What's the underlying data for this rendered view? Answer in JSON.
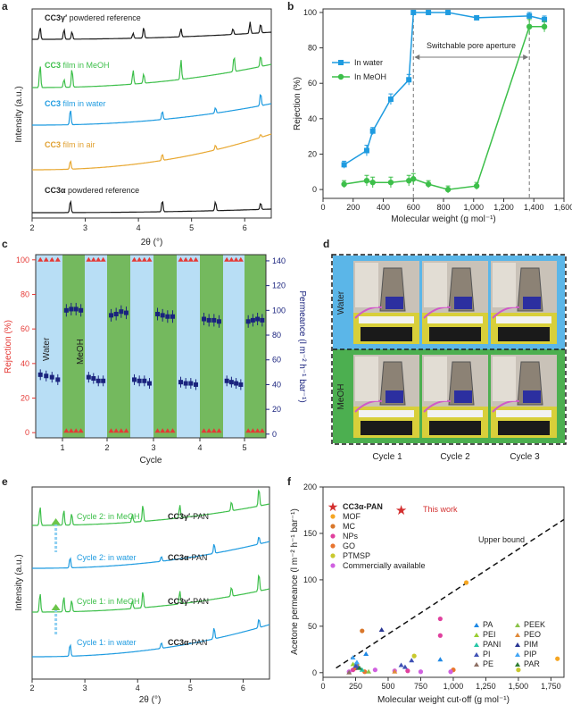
{
  "panels": {
    "a": {
      "label": "a",
      "xlabel": "2θ (°)",
      "ylabel": "Intensity (a.u.)",
      "xticks": [
        "2",
        "3",
        "4",
        "5",
        "6"
      ],
      "traces": [
        {
          "name": "CC3γ′ powdered reference",
          "bold": "CC3γ′",
          "rest": " powdered reference",
          "color": "#1a1a1a"
        },
        {
          "name": "CC3 film in MeOH",
          "bold": "CC3",
          "rest": " film in MeOH",
          "color": "#3dbf4a"
        },
        {
          "name": "CC3 film in water",
          "bold": "CC3",
          "rest": " film in water",
          "color": "#1e9be0"
        },
        {
          "name": "CC3 film in air",
          "bold": "CC3",
          "rest": " film in air",
          "color": "#e8a832"
        },
        {
          "name": "CC3α powdered reference",
          "bold": "CC3α",
          "rest": " powdered reference",
          "color": "#1a1a1a"
        }
      ]
    },
    "b": {
      "label": "b",
      "xlabel": "Molecular weight (g mol⁻¹)",
      "ylabel": "Rejection (%)",
      "xticks": [
        "0",
        "200",
        "400",
        "600",
        "800",
        "1,000",
        "1,200",
        "1,400",
        "1,600"
      ],
      "yticks": [
        "0",
        "20",
        "40",
        "60",
        "80",
        "100"
      ],
      "annotation": "Switchable pore aperture",
      "legend": [
        "In water",
        "In MeOH"
      ]
    },
    "c": {
      "label": "c",
      "xlabel": "Cycle",
      "ylabel_left": "Rejection (%)",
      "ylabel_right": "Permeance (l m⁻² h⁻¹ bar⁻¹)",
      "yticks_left": [
        "0",
        "20",
        "40",
        "60",
        "80",
        "100"
      ],
      "yticks_right": [
        "0",
        "20",
        "40",
        "60",
        "80",
        "100",
        "120",
        "140"
      ],
      "xticks": [
        "1",
        "2",
        "3",
        "4",
        "5"
      ],
      "band_water": "Water",
      "band_meoh": "MeOH"
    },
    "d": {
      "label": "d",
      "row_labels": [
        "Water",
        "MeOH"
      ],
      "col_labels": [
        "Cycle 1",
        "Cycle 2",
        "Cycle 3"
      ]
    },
    "e": {
      "label": "e",
      "xlabel": "2θ (°)",
      "ylabel": "Intensity (a.u.)",
      "xticks": [
        "2",
        "3",
        "4",
        "5",
        "6"
      ],
      "traces": [
        {
          "name": "Cycle 2: in MeOH",
          "phase_bold": "CC3γ′",
          "phase_rest": "-PAN",
          "color": "#3dbf4a"
        },
        {
          "name": "Cycle 2: in water",
          "phase_bold": "CC3α",
          "phase_rest": "-PAN",
          "color": "#1e9be0"
        },
        {
          "name": "Cycle 1: in MeOH",
          "phase_bold": "CC3γ′",
          "phase_rest": "-PAN",
          "color": "#3dbf4a"
        },
        {
          "name": "Cycle 1: in water",
          "phase_bold": "CC3α",
          "phase_rest": "-PAN",
          "color": "#1e9be0"
        }
      ]
    },
    "f": {
      "label": "f",
      "xlabel": "Molecular weight cut-off (g mol⁻¹)",
      "ylabel": "Acetone permeance (l m⁻² h⁻¹ bar⁻¹)",
      "xticks": [
        "0",
        "250",
        "500",
        "750",
        "1,000",
        "1,250",
        "1,500",
        "1,750"
      ],
      "yticks": [
        "0",
        "50",
        "100",
        "150",
        "200"
      ],
      "this_work": "This work",
      "upper_bound": "Upper bound",
      "legend_main": [
        {
          "label": "CC3α-PAN",
          "color": "#d32f2f"
        },
        {
          "label": "MOF",
          "color": "#f5a623"
        },
        {
          "label": "MC",
          "color": "#d9772b"
        },
        {
          "label": "NPs",
          "color": "#e0409e"
        },
        {
          "label": "GO",
          "color": "#e8742f"
        },
        {
          "label": "PTMSP",
          "color": "#c9c92e"
        },
        {
          "label": "Commercially available",
          "color": "#d060e0"
        }
      ],
      "legend_polymer": [
        {
          "label": "PA",
          "color": "#1e88e5"
        },
        {
          "label": "PEI",
          "color": "#9acd32"
        },
        {
          "label": "PANI",
          "color": "#26c6a6"
        },
        {
          "label": "PI",
          "color": "#3f51b5"
        },
        {
          "label": "PE",
          "color": "#8d6e63"
        },
        {
          "label": "PEEK",
          "color": "#8bc34a"
        },
        {
          "label": "PEO",
          "color": "#e08a3a"
        },
        {
          "label": "PIM",
          "color": "#283593"
        },
        {
          "label": "PIP",
          "color": "#42a5f5"
        },
        {
          "label": "PAR",
          "color": "#2e7d32"
        }
      ]
    }
  },
  "chart_data": [
    {
      "type": "line",
      "panel": "a",
      "title": "",
      "xlabel": "2θ (°)",
      "ylabel": "Intensity (a.u.)",
      "xlim": [
        2,
        6.5
      ],
      "series": [
        {
          "name": "CC3γ′ powdered reference",
          "peaks": [
            2.15,
            2.6,
            2.75,
            3.9,
            4.1,
            4.8,
            5.78,
            6.1,
            6.3
          ]
        },
        {
          "name": "CC3 film in MeOH",
          "peaks": [
            2.15,
            2.6,
            2.75,
            3.9,
            4.1,
            4.8,
            5.8,
            6.3
          ]
        },
        {
          "name": "CC3 film in water",
          "peaks": [
            2.72,
            4.45,
            5.45,
            6.3
          ]
        },
        {
          "name": "CC3 film in air",
          "peaks": [
            2.72,
            4.45,
            5.45,
            6.3
          ]
        },
        {
          "name": "CC3α powdered reference",
          "peaks": [
            2.72,
            4.45,
            5.45,
            6.3
          ]
        }
      ]
    },
    {
      "type": "line",
      "panel": "b",
      "xlabel": "Molecular weight (g mol⁻¹)",
      "ylabel": "Rejection (%)",
      "xlim": [
        0,
        1600
      ],
      "ylim": [
        0,
        100
      ],
      "series": [
        {
          "name": "In water",
          "x": [
            140,
            290,
            330,
            450,
            570,
            600,
            700,
            830,
            1020,
            1370,
            1470
          ],
          "y": [
            14,
            22,
            33,
            51,
            62,
            100,
            100,
            100,
            97,
            98,
            96
          ],
          "err": [
            2,
            3,
            2,
            3,
            3,
            1,
            1,
            1,
            1,
            2,
            2
          ]
        },
        {
          "name": "In MeOH",
          "x": [
            140,
            290,
            330,
            450,
            570,
            600,
            700,
            830,
            1020,
            1370,
            1470
          ],
          "y": [
            3,
            5,
            4,
            4,
            5,
            6,
            3,
            0,
            2,
            92,
            92
          ],
          "err": [
            2,
            3,
            3,
            3,
            3,
            3,
            2,
            2,
            2,
            4,
            3
          ]
        }
      ]
    },
    {
      "type": "scatter",
      "panel": "c",
      "xlabel": "Cycle",
      "ylabel_left": "Rejection (%)",
      "ylabel_right": "Permeance (l m⁻² h⁻¹ bar⁻¹)",
      "ylim_left": [
        0,
        100
      ],
      "ylim_right": [
        0,
        145
      ],
      "cycles": [
        "1",
        "2",
        "3",
        "4",
        "5"
      ],
      "series": [
        {
          "name": "Rejection water",
          "values": [
            100,
            100,
            100,
            100,
            100
          ]
        },
        {
          "name": "Rejection MeOH",
          "values": [
            1,
            1,
            1,
            1,
            1
          ]
        },
        {
          "name": "Permeance water",
          "values": [
            [
              48,
              47,
              46,
              44
            ],
            [
              46,
              45,
              43,
              43
            ],
            [
              44,
              43,
              43,
              41
            ],
            [
              42,
              41,
              41,
              40
            ],
            [
              43,
              42,
              41,
              40
            ]
          ]
        },
        {
          "name": "Permeance MeOH",
          "values": [
            [
              100,
              101,
              101,
              100
            ],
            [
              96,
              97,
              99,
              98
            ],
            [
              97,
              96,
              95,
              95
            ],
            [
              93,
              92,
              92,
              91
            ],
            [
              91,
              92,
              93,
              92
            ]
          ]
        }
      ]
    },
    {
      "type": "line",
      "panel": "e",
      "xlabel": "2θ (°)",
      "ylabel": "Intensity (a.u.)",
      "xlim": [
        2,
        6.5
      ],
      "series": [
        {
          "name": "Cycle 2: in MeOH",
          "peaks": [
            2.15,
            2.6,
            2.75,
            3.9,
            4.1,
            4.8,
            5.78,
            6.3
          ]
        },
        {
          "name": "Cycle 2: in water",
          "peaks": [
            2.72,
            4.45,
            5.45,
            6.3
          ]
        },
        {
          "name": "Cycle 1: in MeOH",
          "peaks": [
            2.15,
            2.6,
            2.75,
            3.9,
            4.1,
            4.8,
            5.78,
            6.3
          ]
        },
        {
          "name": "Cycle 1: in water",
          "peaks": [
            2.72,
            4.45,
            5.45,
            6.3
          ]
        }
      ]
    },
    {
      "type": "scatter",
      "panel": "f",
      "xlabel": "Molecular weight cut-off (g mol⁻¹)",
      "ylabel": "Acetone permeance (l m⁻² h⁻¹ bar⁻¹)",
      "xlim": [
        0,
        1850
      ],
      "ylim": [
        0,
        200
      ],
      "upper_bound": {
        "x": [
          100,
          1850
        ],
        "y": [
          5,
          165
        ]
      },
      "points": [
        {
          "g": "CC3α-PAN",
          "x": 600,
          "y": 175
        },
        {
          "g": "MOF",
          "x": 1000,
          "y": 3
        },
        {
          "g": "MOF",
          "x": 1800,
          "y": 15
        },
        {
          "g": "MOF",
          "x": 1100,
          "y": 97
        },
        {
          "g": "MC",
          "x": 300,
          "y": 45
        },
        {
          "g": "MC",
          "x": 260,
          "y": 9
        },
        {
          "g": "NPs",
          "x": 900,
          "y": 58
        },
        {
          "g": "NPs",
          "x": 900,
          "y": 40
        },
        {
          "g": "NPs",
          "x": 230,
          "y": 3
        },
        {
          "g": "NPs",
          "x": 650,
          "y": 2
        },
        {
          "g": "GO",
          "x": 250,
          "y": 5
        },
        {
          "g": "GO",
          "x": 320,
          "y": 1
        },
        {
          "g": "GO",
          "x": 1000,
          "y": 3
        },
        {
          "g": "PTMSP",
          "x": 700,
          "y": 18
        },
        {
          "g": "PTMSP",
          "x": 1500,
          "y": 3
        },
        {
          "g": "Commercially available",
          "x": 200,
          "y": 1
        },
        {
          "g": "Commercially available",
          "x": 400,
          "y": 3
        },
        {
          "g": "Commercially available",
          "x": 550,
          "y": 2
        },
        {
          "g": "Commercially available",
          "x": 750,
          "y": 1
        },
        {
          "g": "Commercially available",
          "x": 980,
          "y": 1
        },
        {
          "g": "PA",
          "x": 900,
          "y": 14
        },
        {
          "g": "PA",
          "x": 330,
          "y": 20
        },
        {
          "g": "PA",
          "x": 250,
          "y": 9
        },
        {
          "g": "PEI",
          "x": 230,
          "y": 9
        },
        {
          "g": "PANI",
          "x": 300,
          "y": 3
        },
        {
          "g": "PI",
          "x": 270,
          "y": 5
        },
        {
          "g": "PI",
          "x": 250,
          "y": 7
        },
        {
          "g": "PI",
          "x": 600,
          "y": 8
        },
        {
          "g": "PI",
          "x": 630,
          "y": 6
        },
        {
          "g": "PI",
          "x": 680,
          "y": 13
        },
        {
          "g": "PE",
          "x": 200,
          "y": 0
        },
        {
          "g": "PEEK",
          "x": 350,
          "y": 1
        },
        {
          "g": "PEO",
          "x": 550,
          "y": 1
        },
        {
          "g": "PIM",
          "x": 450,
          "y": 46
        },
        {
          "g": "PIP",
          "x": 230,
          "y": 16
        },
        {
          "g": "PIP",
          "x": 260,
          "y": 11
        },
        {
          "g": "PAR",
          "x": 280,
          "y": 5
        }
      ]
    }
  ]
}
